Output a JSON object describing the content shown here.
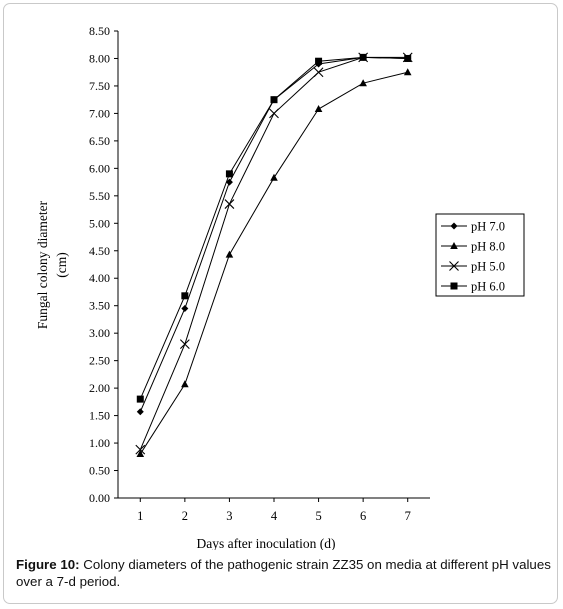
{
  "chart_data": {
    "type": "line",
    "x": [
      1,
      2,
      3,
      4,
      5,
      6,
      7
    ],
    "xlabel": "Days after inoculation (d)",
    "ylabel_lines": [
      "Fungal colony diameter",
      "(cm)"
    ],
    "ylim": [
      0,
      8.5
    ],
    "yticks": [
      "0.00",
      "0.50",
      "1.00",
      "1.50",
      "2.00",
      "2.50",
      "3.00",
      "3.50",
      "4.00",
      "4.50",
      "5.00",
      "5.50",
      "6.00",
      "6.50",
      "7.00",
      "7.50",
      "8.00",
      "8.50"
    ],
    "legend_position": "right",
    "series": [
      {
        "name": "pH 7.0",
        "marker": "diamond",
        "values": [
          1.57,
          3.45,
          5.75,
          7.25,
          7.9,
          8.02,
          8.0
        ]
      },
      {
        "name": "pH 8.0",
        "marker": "triangle",
        "values": [
          0.8,
          2.07,
          4.43,
          5.83,
          7.08,
          7.55,
          7.75
        ]
      },
      {
        "name": "pH 5.0",
        "marker": "x",
        "values": [
          0.88,
          2.8,
          5.35,
          7.0,
          7.75,
          8.02,
          8.02
        ]
      },
      {
        "name": "pH 6.0",
        "marker": "square",
        "values": [
          1.8,
          3.68,
          5.9,
          7.25,
          7.95,
          8.02,
          8.0
        ]
      }
    ]
  },
  "caption": {
    "label": "Figure 10:",
    "text": " Colony diameters of the pathogenic strain ZZ35 on media at different pH values over a 7-d period."
  }
}
